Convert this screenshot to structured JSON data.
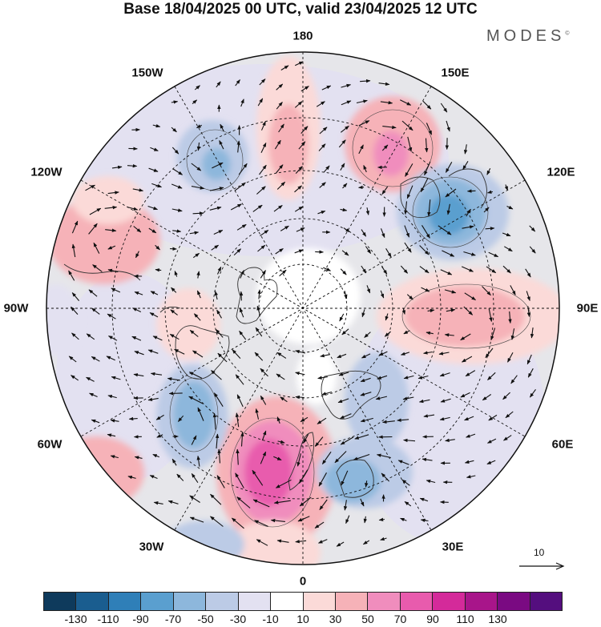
{
  "title": "Base 18/04/2025 00 UTC, valid 23/04/2025 12 UTC",
  "logo": {
    "text": "MODES",
    "mark": "©"
  },
  "longitude_labels": [
    "180",
    "150E",
    "120E",
    "90E",
    "60E",
    "30E",
    "0",
    "30W",
    "60W",
    "90W",
    "120W",
    "150W"
  ],
  "vector_scale": {
    "label": "10"
  },
  "colorbar": {
    "colors": [
      "#0e3a5c",
      "#1a5d8f",
      "#2f7fb8",
      "#5a9fcf",
      "#8db7dc",
      "#bccbe6",
      "#e3e1f1",
      "#ffffff",
      "#fbdad8",
      "#f6b2b8",
      "#f08dbd",
      "#e85bad",
      "#d42a9a",
      "#a8158a",
      "#7a0a82",
      "#540e7e"
    ],
    "tick_labels": [
      "-130",
      "-110",
      "-90",
      "-70",
      "-50",
      "-30",
      "-10",
      "10",
      "30",
      "50",
      "70",
      "90",
      "110",
      "130"
    ]
  },
  "map": {
    "anomaly_centers": [
      {
        "lon": 0,
        "lat": 55,
        "value": 90
      },
      {
        "lon": 45,
        "lat": 62,
        "value": -50
      },
      {
        "lon": 120,
        "lat": 55,
        "value": -70
      },
      {
        "lon": 160,
        "lat": 45,
        "value": 60
      },
      {
        "lon": 90,
        "lat": 50,
        "value": 40
      },
      {
        "lon": -120,
        "lat": 45,
        "value": 40
      },
      {
        "lon": -160,
        "lat": 40,
        "value": -40
      },
      {
        "lon": -40,
        "lat": 55,
        "value": -60
      },
      {
        "lon": -90,
        "lat": 60,
        "value": 30
      }
    ]
  }
}
